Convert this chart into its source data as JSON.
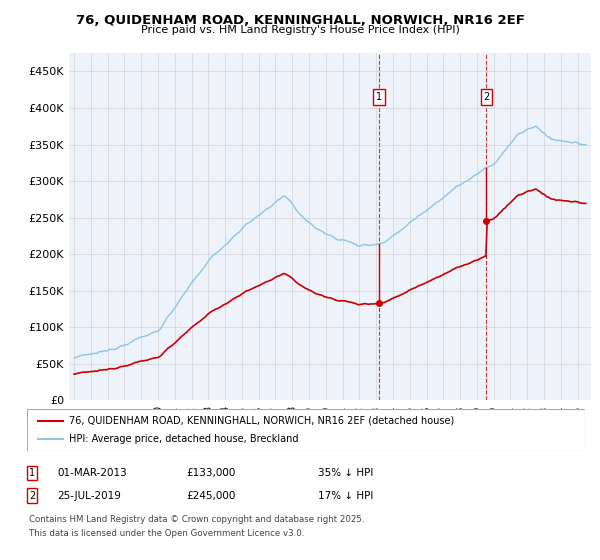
{
  "title_line1": "76, QUIDENHAM ROAD, KENNINGHALL, NORWICH, NR16 2EF",
  "title_line2": "Price paid vs. HM Land Registry's House Price Index (HPI)",
  "ylim": [
    0,
    475000
  ],
  "yticks": [
    0,
    50000,
    100000,
    150000,
    200000,
    250000,
    300000,
    350000,
    400000,
    450000
  ],
  "ytick_labels": [
    "£0",
    "£50K",
    "£100K",
    "£150K",
    "£200K",
    "£250K",
    "£300K",
    "£350K",
    "£400K",
    "£450K"
  ],
  "xlim_start": 1994.7,
  "xlim_end": 2025.8,
  "hpi_color": "#8ec4e8",
  "sale_color": "#cc0000",
  "sale1_date": 2013.17,
  "sale1_price": 133000,
  "sale2_date": 2019.57,
  "sale2_price": 245000,
  "legend_sale": "76, QUIDENHAM ROAD, KENNINGHALL, NORWICH, NR16 2EF (detached house)",
  "legend_hpi": "HPI: Average price, detached house, Breckland",
  "footnote3": "Contains HM Land Registry data © Crown copyright and database right 2025.",
  "footnote4": "This data is licensed under the Open Government Licence v3.0.",
  "background_color": "#ffffff",
  "plot_bg_color": "#eef2fb"
}
